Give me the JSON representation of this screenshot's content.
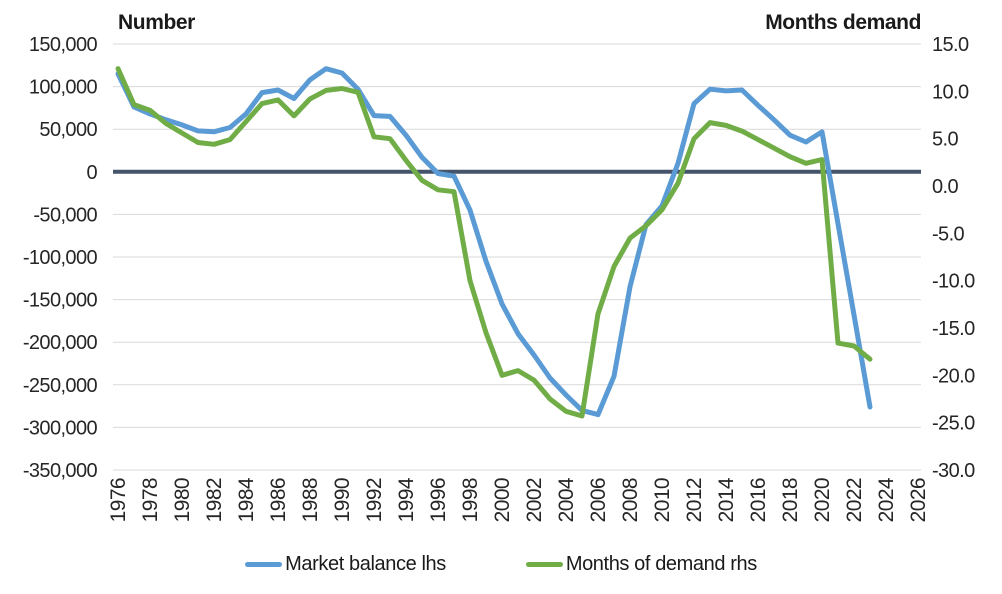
{
  "chart_data": {
    "type": "line",
    "axis_titles": {
      "left": "Number",
      "right": "Months demand"
    },
    "x": [
      1976,
      1977,
      1978,
      1979,
      1980,
      1981,
      1982,
      1983,
      1984,
      1985,
      1986,
      1987,
      1988,
      1989,
      1990,
      1991,
      1992,
      1993,
      1994,
      1995,
      1996,
      1997,
      1998,
      1999,
      2000,
      2001,
      2002,
      2003,
      2004,
      2005,
      2006,
      2007,
      2008,
      2009,
      2010,
      2011,
      2012,
      2013,
      2014,
      2015,
      2016,
      2017,
      2018,
      2019,
      2020,
      2021,
      2022,
      2023
    ],
    "series": [
      {
        "name": "Market balance lhs",
        "axis": "left",
        "color": "#5B9BD5",
        "values": [
          115000,
          76000,
          68000,
          61000,
          55000,
          48000,
          47000,
          52000,
          68000,
          93000,
          96000,
          86000,
          108000,
          121000,
          116000,
          97000,
          66000,
          65000,
          43000,
          17000,
          -2000,
          -5000,
          -45000,
          -105000,
          -155000,
          -190000,
          -215000,
          -242000,
          -262000,
          -280000,
          -285000,
          -240000,
          -135000,
          -62000,
          -40000,
          10000,
          80000,
          97000,
          95000,
          96000,
          78000,
          61000,
          43000,
          35000,
          47000,
          -61000,
          -168000,
          -276000
        ]
      },
      {
        "name": "Months of demand rhs",
        "axis": "right",
        "color": "#70AD47",
        "values": [
          12.4,
          8.6,
          8.0,
          6.6,
          5.6,
          4.6,
          4.4,
          4.9,
          6.8,
          8.7,
          9.1,
          7.4,
          9.2,
          10.1,
          10.3,
          9.9,
          5.2,
          5.0,
          2.7,
          0.6,
          -0.4,
          -0.6,
          -10.0,
          -15.5,
          -20.0,
          -19.5,
          -20.5,
          -22.5,
          -23.8,
          -24.3,
          -13.5,
          -8.5,
          -5.5,
          -4.2,
          -2.5,
          0.3,
          5.0,
          6.7,
          6.4,
          5.8,
          4.9,
          4.0,
          3.1,
          2.4,
          2.8,
          -16.6,
          -16.9,
          -18.3
        ]
      }
    ],
    "left_axis": {
      "min": -350000,
      "max": 150000,
      "tick_step": 50000,
      "tick_labels": [
        "150,000",
        "100,000",
        "50,000",
        "0",
        "-50,000",
        "-100,000",
        "-150,000",
        "-200,000",
        "-250,000",
        "-300,000",
        "-350,000"
      ]
    },
    "right_axis": {
      "min": -30,
      "max": 15,
      "tick_step": 5,
      "tick_labels": [
        "15.0",
        "10.0",
        "5.0",
        "0.0",
        "-5.0",
        "-10.0",
        "-15.0",
        "-20.0",
        "-25.0",
        "-30.0"
      ]
    },
    "x_axis": {
      "min": 1976,
      "max": 2026,
      "tick_labels": [
        "1976",
        "1978",
        "1980",
        "1982",
        "1984",
        "1986",
        "1988",
        "1990",
        "1992",
        "1994",
        "1996",
        "1998",
        "2000",
        "2002",
        "2004",
        "2006",
        "2008",
        "2010",
        "2012",
        "2014",
        "2016",
        "2018",
        "2020",
        "2022",
        "2024",
        "2026"
      ]
    },
    "grid": true,
    "zero_line": true,
    "legend_position": "bottom",
    "colors": {
      "zero_line": "#44546A",
      "gridline": "#D9D9D9",
      "text": "#262626"
    }
  }
}
